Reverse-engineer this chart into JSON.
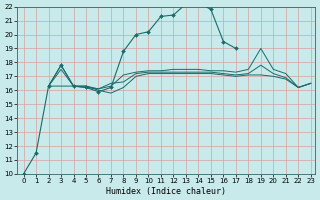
{
  "xlabel": "Humidex (Indice chaleur)",
  "xlim": [
    0,
    23
  ],
  "ylim": [
    10,
    22
  ],
  "xticks": [
    0,
    1,
    2,
    3,
    4,
    5,
    6,
    7,
    8,
    9,
    10,
    11,
    12,
    13,
    14,
    15,
    16,
    17,
    18,
    19,
    20,
    21,
    22,
    23
  ],
  "yticks": [
    10,
    11,
    12,
    13,
    14,
    15,
    16,
    17,
    18,
    19,
    20,
    21,
    22
  ],
  "background_color": "#c8eaea",
  "grid_color": "#d8a0a0",
  "line_color": "#1a6b6b",
  "lines": [
    {
      "x": [
        0,
        1,
        2,
        3,
        4,
        5,
        6,
        7,
        8,
        9,
        10,
        11,
        12,
        13,
        14,
        15,
        16,
        17
      ],
      "y": [
        10,
        11.5,
        16.3,
        17.8,
        16.3,
        16.2,
        15.9,
        16.2,
        18.8,
        20.0,
        20.2,
        21.3,
        21.4,
        22.2,
        22.3,
        21.8,
        19.5,
        19.0
      ],
      "marker": true
    },
    {
      "x": [
        2,
        3,
        4,
        5,
        6,
        7,
        8,
        9,
        10,
        11,
        12,
        13,
        14,
        15,
        16,
        17,
        18,
        19,
        20,
        21,
        22,
        23
      ],
      "y": [
        16.3,
        17.8,
        16.3,
        16.2,
        16.1,
        16.3,
        17.1,
        17.3,
        17.4,
        17.4,
        17.5,
        17.5,
        17.5,
        17.4,
        17.4,
        17.3,
        17.5,
        19.0,
        17.5,
        17.2,
        16.2,
        16.5
      ],
      "marker": false
    },
    {
      "x": [
        2,
        3,
        4,
        5,
        6,
        7,
        8,
        9,
        10,
        11,
        12,
        13,
        14,
        15,
        16,
        17,
        18,
        19,
        20,
        21,
        22,
        23
      ],
      "y": [
        16.3,
        16.3,
        16.3,
        16.3,
        16.0,
        15.8,
        16.2,
        17.0,
        17.2,
        17.2,
        17.2,
        17.2,
        17.2,
        17.2,
        17.1,
        17.0,
        17.1,
        17.1,
        17.0,
        16.8,
        16.2,
        16.5
      ],
      "marker": false
    },
    {
      "x": [
        2,
        3,
        4,
        5,
        6,
        7,
        8,
        9,
        10,
        11,
        12,
        13,
        14,
        15,
        16,
        17,
        18,
        19,
        20,
        21,
        22,
        23
      ],
      "y": [
        16.3,
        17.5,
        16.3,
        16.3,
        16.1,
        16.5,
        16.6,
        17.2,
        17.3,
        17.3,
        17.3,
        17.3,
        17.3,
        17.3,
        17.2,
        17.1,
        17.2,
        17.8,
        17.2,
        16.9,
        16.2,
        16.5
      ],
      "marker": false
    }
  ]
}
